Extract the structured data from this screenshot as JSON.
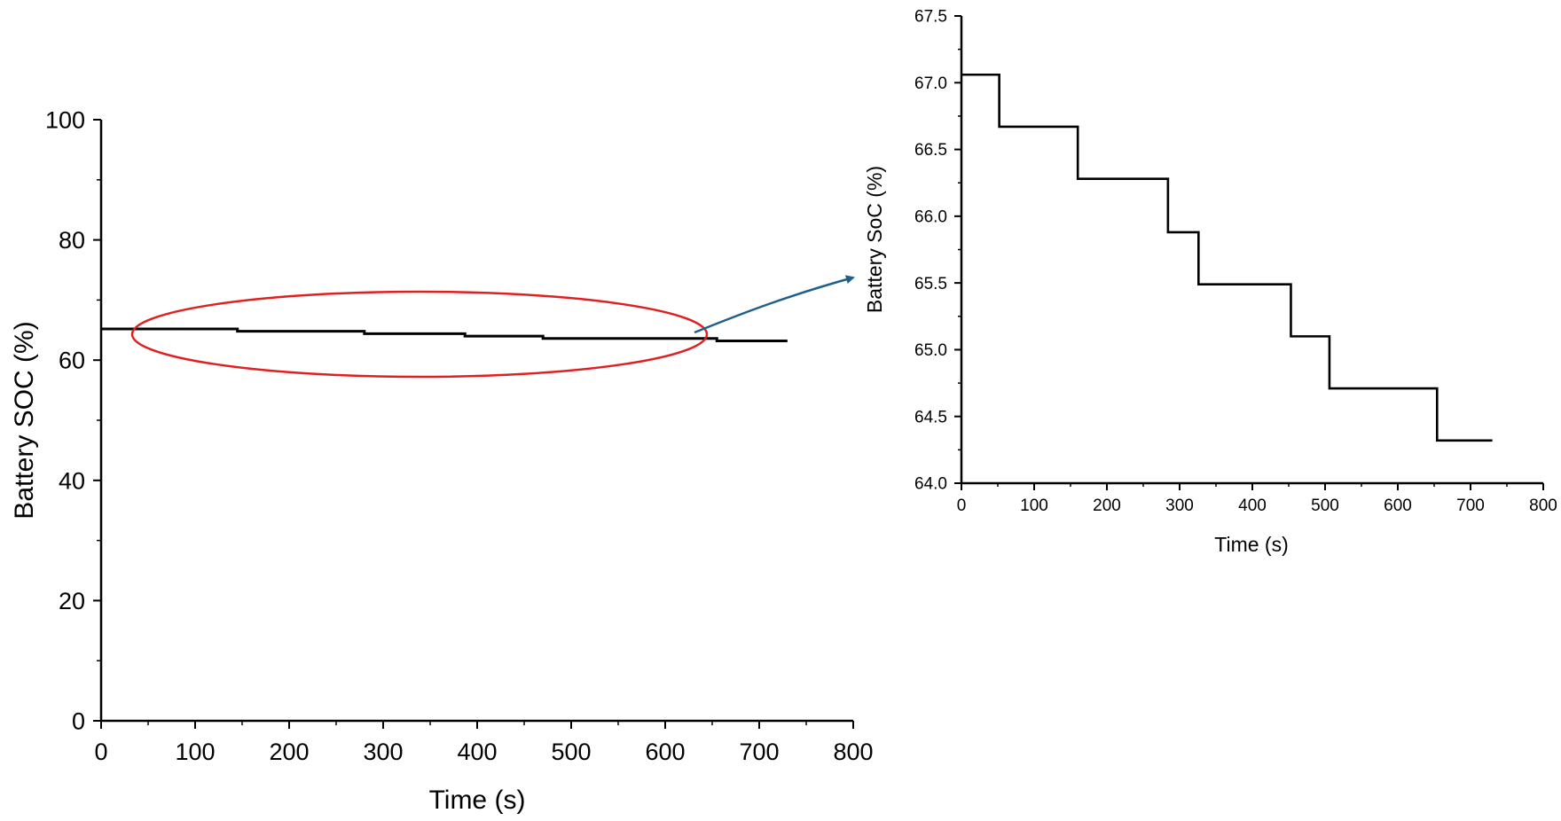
{
  "chart_data": [
    {
      "type": "line",
      "title": "",
      "xlabel": "Time (s)",
      "ylabel": "Battery SOC (%)",
      "xlim": [
        0,
        800
      ],
      "ylim": [
        0,
        100
      ],
      "xticks": [
        "0",
        "100",
        "200",
        "300",
        "400",
        "500",
        "600",
        "700",
        "800"
      ],
      "yticks": [
        "0",
        "20",
        "40",
        "60",
        "80",
        "100"
      ],
      "grid": false,
      "series": [
        {
          "step": true,
          "x": [
            0,
            145,
            280,
            387,
            470,
            655,
            730
          ],
          "y": [
            65.2,
            64.8,
            64.4,
            64.0,
            63.6,
            63.2,
            63.2
          ]
        }
      ],
      "annotations": {
        "highlight_ellipse_color": "#e02020",
        "arrow_color": "#1f5f8b"
      }
    },
    {
      "type": "line",
      "title": "",
      "xlabel": "Time (s)",
      "ylabel": "Battery SoC (%)",
      "xlim": [
        0,
        800
      ],
      "ylim": [
        64.0,
        67.5
      ],
      "xticks": [
        "0",
        "100",
        "200",
        "300",
        "400",
        "500",
        "600",
        "700",
        "800"
      ],
      "yticks": [
        "64.0",
        "64.5",
        "65.0",
        "65.5",
        "66.0",
        "66.5",
        "67.0",
        "67.5"
      ],
      "grid": false,
      "series": [
        {
          "step": true,
          "x": [
            0,
            52,
            160,
            284,
            326,
            453,
            506,
            654,
            730
          ],
          "y": [
            67.06,
            66.67,
            66.28,
            65.88,
            65.49,
            65.1,
            64.71,
            64.32,
            64.32
          ]
        }
      ]
    }
  ]
}
